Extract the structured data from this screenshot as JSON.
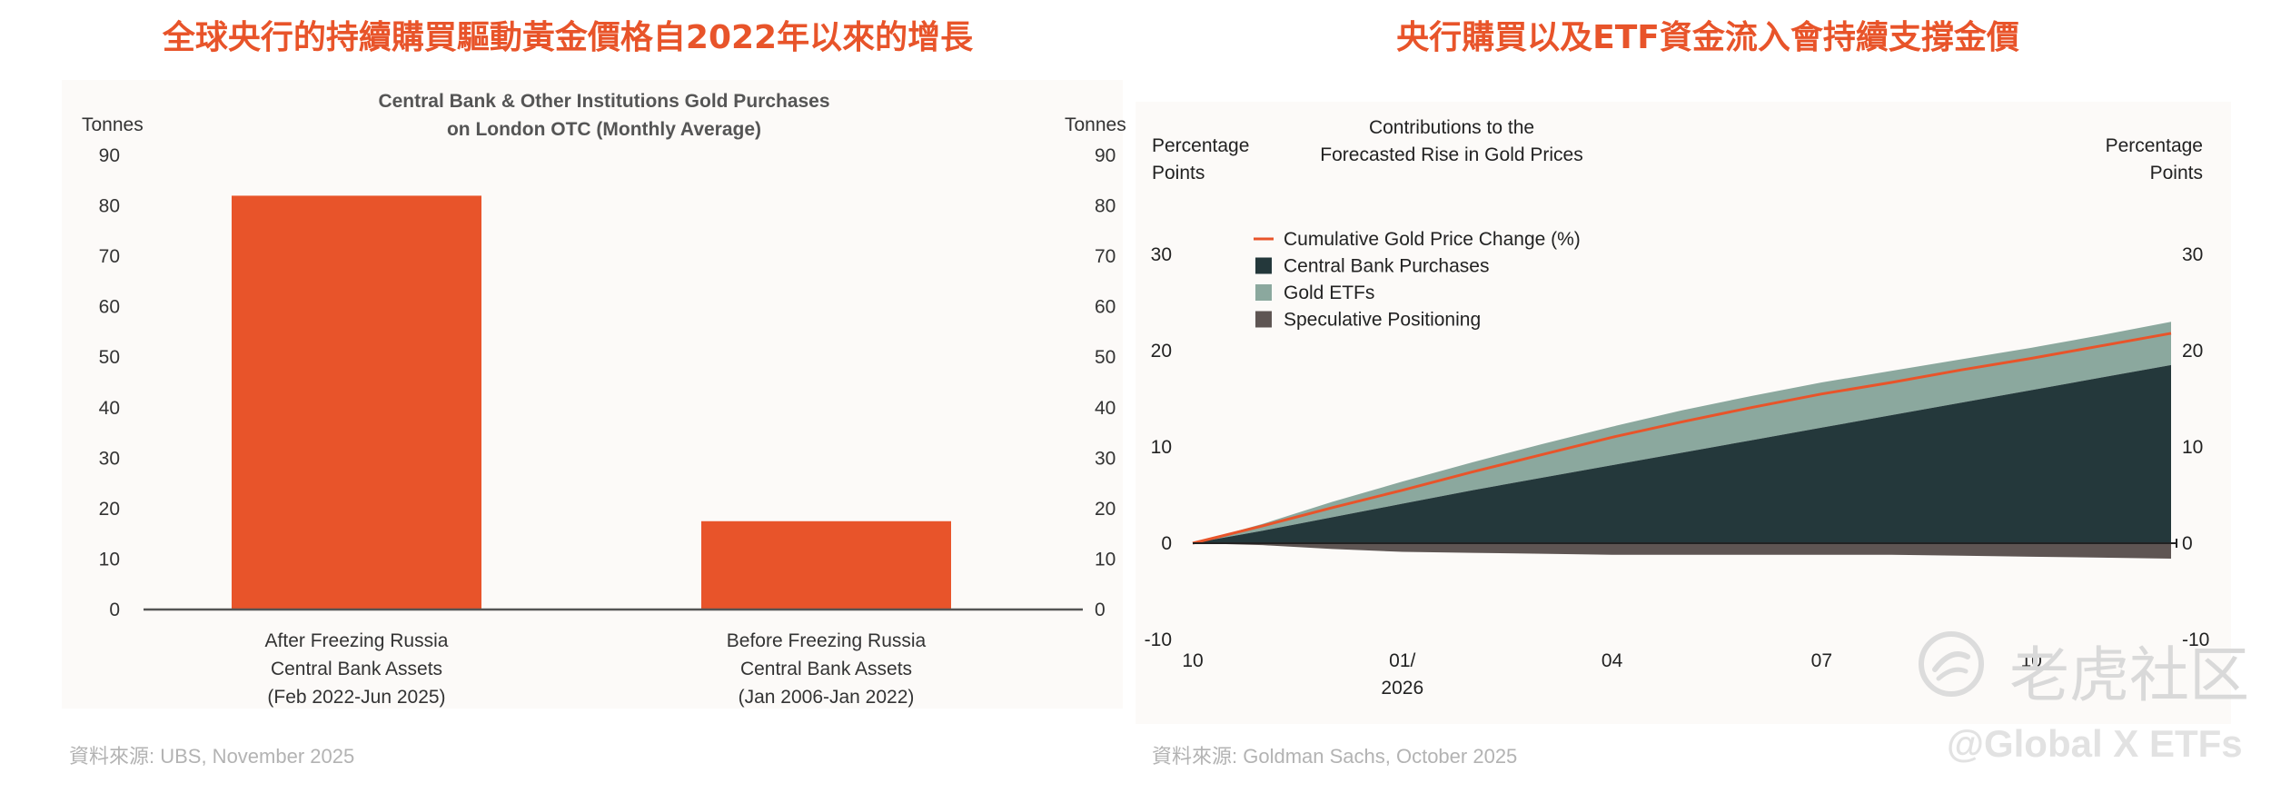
{
  "left_panel": {
    "title": "全球央行的持續購買驅動黃金價格自2022年以來的增長",
    "source": "資料來源: UBS, November 2025"
  },
  "right_panel": {
    "title": "央行購買以及ETF資金流入會持續支撐金價",
    "source": "資料來源: Goldman Sachs, October 2025"
  },
  "watermark": {
    "logo_text": "老虎社区",
    "handle": "@Global X ETFs"
  },
  "colors": {
    "accent": "#e8542a",
    "bar": "#e8542a",
    "cumulative_line": "#e8542a",
    "central_bank": "#24383b",
    "gold_etfs": "#8ba89e",
    "speculative": "#5e5553",
    "axis": "#555555"
  },
  "chart_data": [
    {
      "type": "bar",
      "title_lines": [
        "Central Bank & Other Institutions Gold Purchases",
        "on London OTC (Monthly Average)"
      ],
      "ylabel_left": "Tonnes",
      "ylabel_right": "Tonnes",
      "ylim": [
        0,
        90
      ],
      "yticks": [
        0,
        10,
        20,
        30,
        40,
        50,
        60,
        70,
        80,
        90
      ],
      "categories": [
        [
          "After Freezing Russia",
          "Central Bank Assets",
          "(Feb 2022-Jun 2025)"
        ],
        [
          "Before Freezing Russia",
          "Central Bank Assets",
          "(Jan 2006-Jan 2022)"
        ]
      ],
      "values": [
        82,
        17.5
      ]
    },
    {
      "type": "area",
      "title_lines": [
        "Contributions to the",
        "Forecasted Rise in Gold Prices"
      ],
      "ylabel_left": [
        "Percentage",
        "Points"
      ],
      "ylabel_right": [
        "Percentage",
        "Points"
      ],
      "ylim": [
        -10,
        30
      ],
      "yticks": [
        -10,
        0,
        10,
        20,
        30
      ],
      "x_labels": [
        {
          "x": 0,
          "label": "10"
        },
        {
          "x": 3,
          "label": "01/",
          "sub": "2026"
        },
        {
          "x": 6,
          "label": "04"
        },
        {
          "x": 9,
          "label": "07"
        },
        {
          "x": 12,
          "label": "10"
        }
      ],
      "x": [
        0,
        1,
        2,
        3,
        4,
        5,
        6,
        7,
        8,
        9,
        10,
        11,
        12,
        13,
        14
      ],
      "legend": [
        "Cumulative Gold Price Change (%)",
        "Central Bank Purchases",
        "Gold ETFs",
        "Speculative Positioning"
      ],
      "series": [
        {
          "name": "Central Bank Purchases",
          "kind": "stack",
          "values": [
            0,
            1.3,
            2.7,
            4.1,
            5.5,
            6.8,
            8.1,
            9.4,
            10.7,
            12.0,
            13.3,
            14.6,
            15.9,
            17.2,
            18.5
          ]
        },
        {
          "name": "Gold ETFs",
          "kind": "stack",
          "values": [
            0,
            0.7,
            1.6,
            2.3,
            2.9,
            3.5,
            4.0,
            4.4,
            4.6,
            4.7,
            4.6,
            4.5,
            4.4,
            4.4,
            4.5
          ]
        },
        {
          "name": "Speculative Positioning",
          "kind": "negative",
          "values": [
            0,
            -0.2,
            -0.6,
            -0.9,
            -1.0,
            -1.1,
            -1.2,
            -1.2,
            -1.2,
            -1.2,
            -1.2,
            -1.3,
            -1.4,
            -1.5,
            -1.6
          ]
        },
        {
          "name": "Cumulative Gold Price Change (%)",
          "kind": "line",
          "values": [
            0,
            1.8,
            3.7,
            5.5,
            7.4,
            9.2,
            11.0,
            12.6,
            14.1,
            15.5,
            16.7,
            18.0,
            19.2,
            20.5,
            21.8
          ]
        }
      ]
    }
  ]
}
